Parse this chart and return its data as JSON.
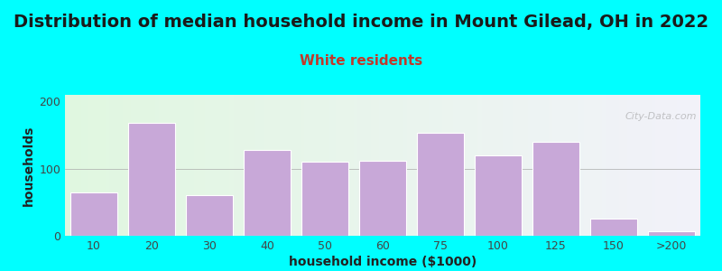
{
  "title": "Distribution of median household income in Mount Gilead, OH in 2022",
  "subtitle": "White residents",
  "xlabel": "household income ($1000)",
  "ylabel": "households",
  "background_outer": "#00FFFF",
  "bar_color": "#c8a8d8",
  "bar_edge_color": "#ffffff",
  "categories": [
    "10",
    "20",
    "30",
    "40",
    "50",
    "60",
    "75",
    "100",
    "125",
    "150",
    ">200"
  ],
  "values": [
    65,
    168,
    60,
    128,
    110,
    112,
    153,
    120,
    140,
    25,
    7
  ],
  "ylim": [
    0,
    210
  ],
  "yticks": [
    0,
    100,
    200
  ],
  "title_fontsize": 14,
  "subtitle_fontsize": 11,
  "subtitle_color": "#c0392b",
  "axis_label_fontsize": 10,
  "tick_fontsize": 9,
  "watermark_text": "City-Data.com",
  "title_color": "#1a1a1a",
  "tick_color": "#444444"
}
